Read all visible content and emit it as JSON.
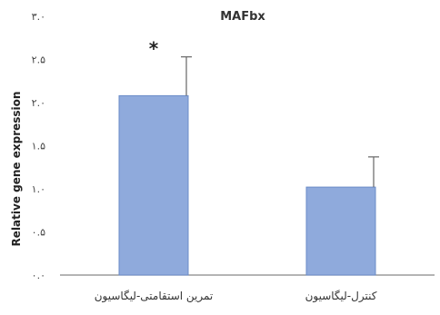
{
  "chart_data": {
    "type": "bar",
    "title": "MAFbx",
    "ylabel": "Relative gene expression",
    "categories": [
      "تمرین استقامتی-لیگاسیون",
      "کنترل-لیگاسیون"
    ],
    "values": [
      2.08,
      1.02
    ],
    "errors": [
      0.45,
      0.35
    ],
    "annotations": [
      "*",
      ""
    ],
    "ylim": [
      0,
      3.0
    ],
    "yticks": [
      0,
      0.5,
      1.0,
      1.5,
      2.0,
      2.5,
      3.0
    ],
    "ytick_labels": [
      "۰.۰",
      "۰.۵",
      "۱.۰",
      "۱.۵",
      "۲.۰",
      "۲.۵",
      "۳.۰"
    ],
    "bar_color": "#8faadc",
    "bar_edge": "#6b8cc7",
    "grid": false,
    "legend": "none"
  }
}
